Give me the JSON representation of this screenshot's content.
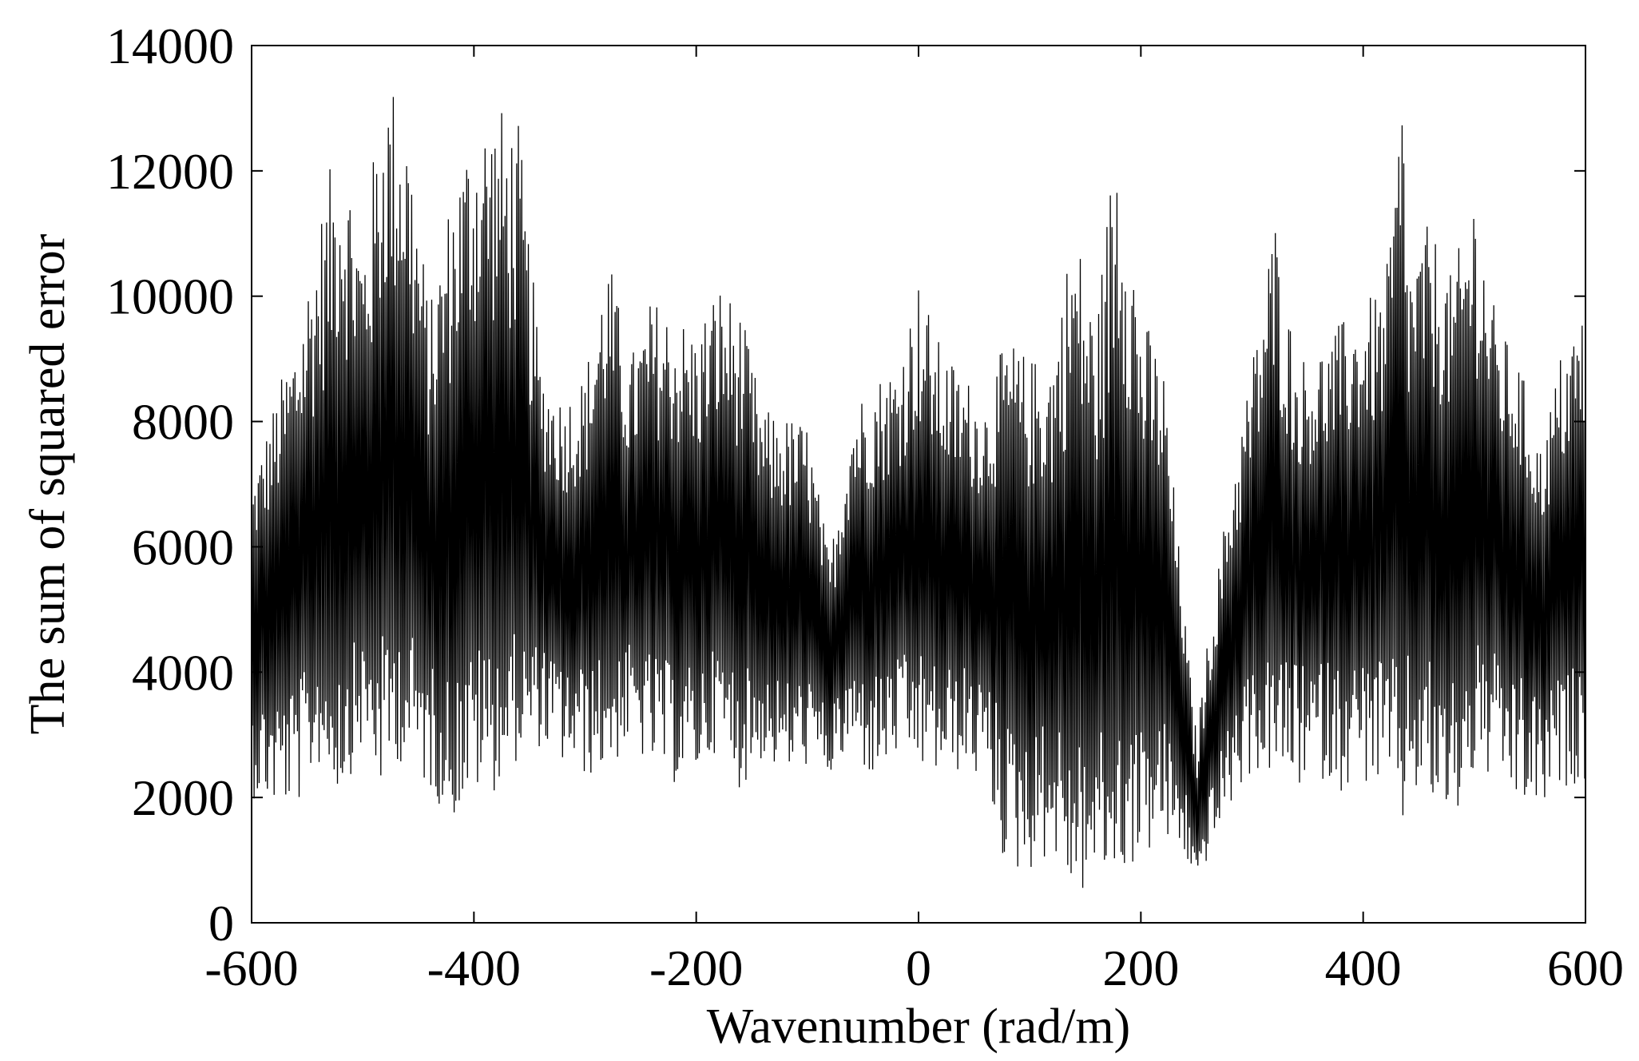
{
  "chart_data": {
    "type": "line",
    "title": "",
    "xlabel": "Wavenumber (rad/m)",
    "ylabel": "The sum of squared error",
    "xlim": [
      -600,
      600
    ],
    "ylim": [
      0,
      14000
    ],
    "xticks": [
      -600,
      -400,
      -200,
      0,
      200,
      400,
      600
    ],
    "yticks": [
      0,
      2000,
      4000,
      6000,
      8000,
      10000,
      12000,
      14000
    ],
    "grid": false,
    "legend": "none",
    "line_color": "#000000",
    "series": [
      {
        "x": [
          -600,
          -580,
          -560,
          -540,
          -520,
          -500,
          -480,
          -470,
          -460,
          -440,
          -420,
          -400,
          -380,
          -360,
          -340,
          -320,
          -300,
          -280,
          -260,
          -240,
          -220,
          -200,
          -180,
          -160,
          -140,
          -120,
          -100,
          -80,
          -60,
          -40,
          -20,
          0,
          20,
          40,
          60,
          80,
          100,
          120,
          140,
          160,
          180,
          200,
          220,
          240,
          250,
          260,
          280,
          300,
          320,
          340,
          360,
          380,
          400,
          420,
          436,
          440,
          460,
          480,
          500,
          520,
          540,
          560,
          580,
          600
        ],
        "upper": [
          7000,
          8300,
          9500,
          11200,
          12800,
          11000,
          13600,
          13400,
          13000,
          9800,
          11800,
          13000,
          13100,
          12800,
          9000,
          8400,
          8800,
          10800,
          9000,
          10000,
          9800,
          9500,
          10300,
          9800,
          8200,
          8100,
          8000,
          5800,
          8300,
          8700,
          9000,
          10300,
          9200,
          8800,
          8400,
          9400,
          9000,
          9200,
          11300,
          9600,
          13400,
          9800,
          9000,
          4800,
          3000,
          4500,
          7000,
          9000,
          11400,
          9000,
          9200,
          9600,
          9900,
          10200,
          13600,
          10600,
          11200,
          10300,
          11900,
          9600,
          9000,
          7600,
          9300,
          9900
        ],
        "lower": [
          2000,
          1800,
          1800,
          2500,
          2000,
          2800,
          1900,
          2600,
          2400,
          2100,
          1600,
          2000,
          2100,
          2600,
          2800,
          2500,
          2300,
          2400,
          2800,
          2400,
          2200,
          2300,
          2800,
          2100,
          2600,
          2300,
          2500,
          2300,
          2700,
          2200,
          2600,
          2400,
          2300,
          2400,
          2200,
          700,
          800,
          1100,
          300,
          600,
          700,
          1000,
          1200,
          1000,
          600,
          1000,
          1800,
          2400,
          2300,
          2100,
          2300,
          2100,
          2200,
          2100,
          1400,
          2100,
          1800,
          1400,
          2300,
          2200,
          1800,
          1700,
          2100,
          2300
        ],
        "mean": [
          5000,
          5200,
          5500,
          5800,
          6300,
          6000,
          6800,
          6900,
          6700,
          5800,
          6000,
          6400,
          6500,
          6300,
          5800,
          5500,
          5600,
          5900,
          5800,
          5900,
          5700,
          5600,
          5800,
          5700,
          5300,
          5200,
          5200,
          4200,
          5300,
          5500,
          5600,
          5900,
          5600,
          5500,
          5400,
          5300,
          5100,
          5000,
          5200,
          5000,
          5100,
          5000,
          5100,
          3200,
          1500,
          2800,
          4400,
          5400,
          5900,
          5800,
          5800,
          5900,
          6000,
          6100,
          6300,
          6100,
          6200,
          6100,
          6300,
          6000,
          5700,
          5200,
          5500,
          5800
        ]
      }
    ]
  }
}
